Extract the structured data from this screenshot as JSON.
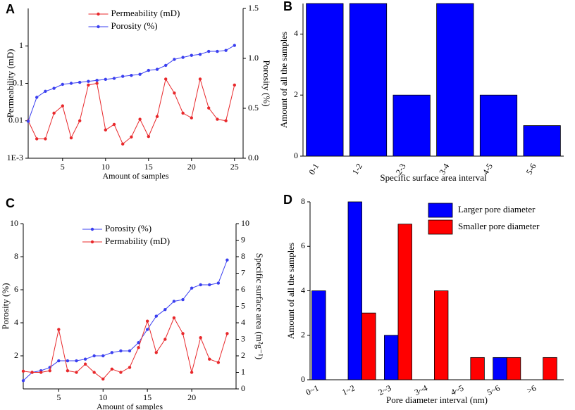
{
  "chart_data": [
    {
      "type": "line",
      "panel_label": "A",
      "xlabel": "Amount of samples",
      "ylabel": "Permeability (mD)",
      "y2label": "Porosity (%)",
      "x": [
        1,
        2,
        3,
        4,
        5,
        6,
        7,
        8,
        9,
        10,
        11,
        12,
        13,
        14,
        15,
        16,
        17,
        18,
        19,
        20,
        21,
        22,
        23,
        24,
        25
      ],
      "xlim": [
        1,
        26
      ],
      "xticks": [
        5,
        10,
        15,
        20,
        25
      ],
      "ylog": true,
      "ylim": [
        0.001,
        10
      ],
      "yticks": [
        {
          "value": 0.001,
          "label": "1E-3"
        },
        0.01,
        0.1,
        1
      ],
      "y2lim": [
        0,
        1.5
      ],
      "y2ticks": [
        {
          "value": 0,
          "label": "0.0"
        },
        0.5,
        {
          "value": 1,
          "label": "1.0"
        },
        1.5
      ],
      "legend": "upper center",
      "series": [
        {
          "name": "Permeability (mD)",
          "color": "#e8282b",
          "values": [
            0.01,
            0.0033,
            0.0033,
            0.016,
            0.025,
            0.0035,
            0.01,
            0.09,
            0.1,
            0.0057,
            0.008,
            0.0024,
            0.0037,
            0.011,
            0.0038,
            0.013,
            0.13,
            0.055,
            0.016,
            0.012,
            0.13,
            0.022,
            0.011,
            0.01,
            0.09
          ]
        },
        {
          "name": "Porosity (%)",
          "color": "#3a3ff0",
          "axis": "y2",
          "values": [
            0.37,
            0.61,
            0.67,
            0.7,
            0.74,
            0.75,
            0.76,
            0.77,
            0.78,
            0.79,
            0.8,
            0.82,
            0.83,
            0.84,
            0.88,
            0.89,
            0.93,
            0.99,
            1.01,
            1.03,
            1.04,
            1.07,
            1.07,
            1.08,
            1.13
          ]
        }
      ]
    },
    {
      "type": "bar",
      "panel_label": "B",
      "xlabel": "Specific surface area interval",
      "ylabel": "Amount of all the samples",
      "categories": [
        "0-1",
        "1-2",
        "2-3",
        "3-4",
        "4-5",
        "5-6"
      ],
      "values": [
        5,
        5,
        2,
        5,
        2,
        1
      ],
      "color": "#0000ff",
      "ylim": [
        0,
        5
      ],
      "yticks": [
        0,
        2,
        4
      ]
    },
    {
      "type": "line",
      "panel_label": "C",
      "xlabel": "Amount of samples",
      "ylabel": "Porosity (%)",
      "y2label": "Specific surface area (m²g⁻¹)",
      "x": [
        1,
        2,
        3,
        4,
        5,
        6,
        7,
        8,
        9,
        10,
        11,
        12,
        13,
        14,
        15,
        16,
        17,
        18,
        19,
        20,
        21,
        22,
        23,
        24
      ],
      "xlim": [
        1,
        25
      ],
      "xticks": [
        5,
        10,
        15,
        20
      ],
      "ylim": [
        0,
        10
      ],
      "yticks": [
        2,
        4,
        6,
        8,
        10
      ],
      "y2lim": [
        0,
        10
      ],
      "y2ticks": [
        0,
        1,
        2,
        3,
        4,
        5,
        6,
        7,
        8,
        9,
        10
      ],
      "legend": "upper center",
      "series": [
        {
          "name": "Porosity (%)",
          "color": "#3a3ff0",
          "values": [
            0.5,
            1.0,
            1.1,
            1.3,
            1.7,
            1.7,
            1.7,
            1.8,
            2.0,
            2.0,
            2.2,
            2.3,
            2.3,
            2.8,
            3.6,
            4.4,
            4.8,
            5.3,
            5.4,
            6.1,
            6.3,
            6.3,
            6.4,
            7.8
          ]
        },
        {
          "name": "Permability (mD)",
          "color": "#e8282b",
          "axis": "y2",
          "values": [
            1.07,
            1.0,
            1.0,
            1.1,
            3.6,
            1.1,
            1.0,
            1.5,
            1.0,
            0.6,
            1.2,
            1.0,
            1.3,
            2.5,
            4.1,
            2.2,
            3.0,
            4.3,
            3.35,
            1.0,
            3.1,
            1.8,
            1.6,
            3.35
          ]
        }
      ]
    },
    {
      "type": "bar",
      "panel_label": "D",
      "xlabel": "Pore diameter interval (nm)",
      "ylabel": "Amount of all the samples",
      "categories": [
        "0~1",
        "1~2",
        "2~3",
        "3~4",
        "4~5",
        "5~6",
        ">6"
      ],
      "ylim": [
        0,
        8
      ],
      "yticks": [
        0,
        2,
        4,
        6,
        8
      ],
      "legend": "upper right",
      "series": [
        {
          "name": "Larger pore diameter",
          "color": "#0000ff",
          "values": [
            4,
            8,
            2,
            0,
            0,
            1,
            0
          ]
        },
        {
          "name": "Smaller pore diameter",
          "color": "#ff0000",
          "values": [
            0,
            3,
            7,
            4,
            1,
            1,
            1
          ]
        }
      ]
    }
  ]
}
